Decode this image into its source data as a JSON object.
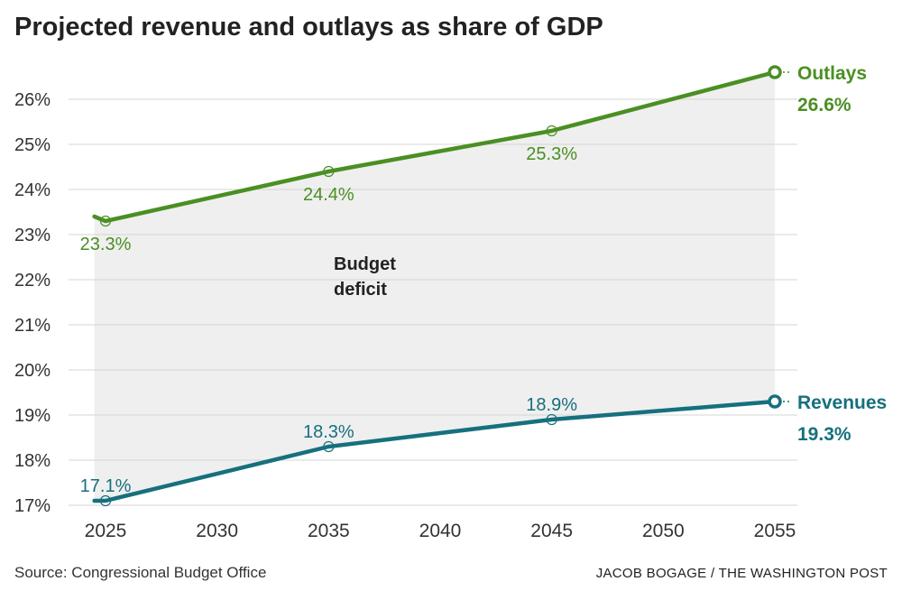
{
  "chart_data": {
    "type": "line",
    "title": "Projected revenue and outlays as share of GDP",
    "xlabel": "",
    "ylabel": "",
    "x_ticks": [
      2025,
      2030,
      2035,
      2040,
      2045,
      2050,
      2055
    ],
    "x_tick_labels": [
      "2025",
      "2030",
      "2035",
      "2040",
      "2045",
      "2050",
      "2055"
    ],
    "xlim": [
      2024.5,
      2055
    ],
    "y_ticks": [
      17,
      18,
      19,
      20,
      21,
      22,
      23,
      24,
      25,
      26
    ],
    "y_tick_labels": [
      "17%",
      "18%",
      "19%",
      "20%",
      "21%",
      "22%",
      "23%",
      "24%",
      "25%",
      "26%"
    ],
    "ylim": [
      16.6,
      26.6
    ],
    "grid": true,
    "shaded_region": {
      "label": "Budget deficit",
      "label_lines": [
        "Budget",
        "deficit"
      ],
      "color": "#efefef"
    },
    "series": [
      {
        "name": "Outlays",
        "end_label": "26.6%",
        "color": "#4a8f23",
        "x": [
          2024.5,
          2025,
          2035,
          2045,
          2055
        ],
        "values": [
          23.4,
          23.3,
          24.4,
          25.3,
          26.6
        ],
        "labeled_points": [
          {
            "x": 2025,
            "y": 23.3,
            "label": "23.3%"
          },
          {
            "x": 2035,
            "y": 24.4,
            "label": "24.4%"
          },
          {
            "x": 2045,
            "y": 25.3,
            "label": "25.3%"
          }
        ]
      },
      {
        "name": "Revenues",
        "end_label": "19.3%",
        "color": "#16707d",
        "x": [
          2024.5,
          2025,
          2035,
          2045,
          2055
        ],
        "values": [
          17.1,
          17.1,
          18.3,
          18.9,
          19.3
        ],
        "labeled_points": [
          {
            "x": 2025,
            "y": 17.1,
            "label": "17.1%"
          },
          {
            "x": 2035,
            "y": 18.3,
            "label": "18.3%"
          },
          {
            "x": 2045,
            "y": 18.9,
            "label": "18.9%"
          }
        ]
      }
    ]
  },
  "footer": {
    "source": "Source: Congressional Budget Office",
    "credit": "JACOB BOGAGE / THE WASHINGTON POST"
  }
}
